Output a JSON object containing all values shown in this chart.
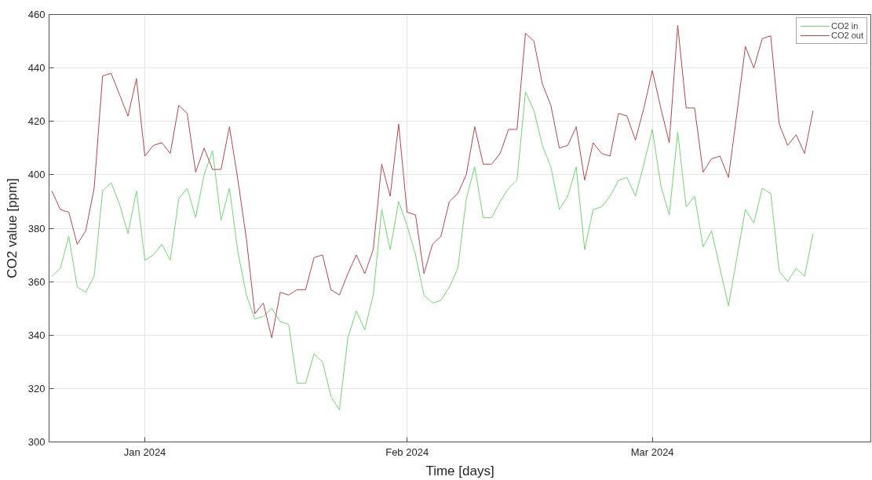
{
  "chart_data": {
    "type": "line",
    "xlabel": "Time [days]",
    "ylabel": "CO2 value [ppm]",
    "x": [
      "2023-12-21",
      "2023-12-22",
      "2023-12-23",
      "2023-12-24",
      "2023-12-25",
      "2023-12-26",
      "2023-12-27",
      "2023-12-28",
      "2023-12-29",
      "2023-12-30",
      "2023-12-31",
      "2024-01-01",
      "2024-01-02",
      "2024-01-03",
      "2024-01-04",
      "2024-01-05",
      "2024-01-06",
      "2024-01-07",
      "2024-01-08",
      "2024-01-09",
      "2024-01-10",
      "2024-01-11",
      "2024-01-12",
      "2024-01-13",
      "2024-01-14",
      "2024-01-15",
      "2024-01-16",
      "2024-01-17",
      "2024-01-18",
      "2024-01-19",
      "2024-01-20",
      "2024-01-21",
      "2024-01-22",
      "2024-01-23",
      "2024-01-24",
      "2024-01-25",
      "2024-01-26",
      "2024-01-27",
      "2024-01-28",
      "2024-01-29",
      "2024-01-30",
      "2024-01-31",
      "2024-02-01",
      "2024-02-02",
      "2024-02-03",
      "2024-02-04",
      "2024-02-05",
      "2024-02-06",
      "2024-02-07",
      "2024-02-08",
      "2024-02-09",
      "2024-02-10",
      "2024-02-11",
      "2024-02-12",
      "2024-02-13",
      "2024-02-14",
      "2024-02-15",
      "2024-02-16",
      "2024-02-17",
      "2024-02-18",
      "2024-02-19",
      "2024-02-20",
      "2024-02-21",
      "2024-02-22",
      "2024-02-23",
      "2024-02-24",
      "2024-02-25",
      "2024-02-26",
      "2024-02-27",
      "2024-02-28",
      "2024-02-29",
      "2024-03-01",
      "2024-03-02",
      "2024-03-03",
      "2024-03-04",
      "2024-03-05",
      "2024-03-06",
      "2024-03-07",
      "2024-03-08",
      "2024-03-09",
      "2024-03-10",
      "2024-03-11",
      "2024-03-12",
      "2024-03-13",
      "2024-03-14",
      "2024-03-15",
      "2024-03-16",
      "2024-03-17",
      "2024-03-18",
      "2024-03-19",
      "2024-03-20"
    ],
    "series": [
      {
        "name": "CO2 in",
        "color": "#6fd66f",
        "values": [
          362,
          365,
          377,
          358,
          356,
          362,
          394,
          397,
          389,
          378,
          394,
          368,
          370,
          374,
          368,
          391,
          395,
          384,
          400,
          409,
          383,
          395,
          371,
          355,
          346,
          347,
          350,
          345,
          344,
          322,
          322,
          333,
          330,
          317,
          312,
          339,
          349,
          342,
          355,
          387,
          372,
          390,
          381,
          370,
          355,
          352,
          353,
          358,
          365,
          391,
          403,
          384,
          384,
          390,
          395,
          398,
          431,
          424,
          411,
          403,
          387,
          392,
          403,
          372,
          387,
          388,
          392,
          398,
          399,
          392,
          404,
          417,
          396,
          385,
          416,
          388,
          392,
          373,
          379,
          365,
          351,
          369,
          387,
          382,
          395,
          393,
          364,
          360,
          365,
          362,
          378
        ]
      },
      {
        "name": "CO2 out",
        "color": "#b5464b",
        "values": [
          394,
          387,
          386,
          374,
          379,
          395,
          437,
          438,
          430,
          422,
          436,
          407,
          411,
          412,
          408,
          426,
          423,
          401,
          410,
          402,
          402,
          418,
          398,
          376,
          348,
          352,
          339,
          356,
          355,
          357,
          357,
          369,
          370,
          357,
          355,
          363,
          370,
          363,
          372,
          404,
          392,
          419,
          386,
          385,
          363,
          374,
          377,
          390,
          393,
          400,
          418,
          404,
          404,
          408,
          417,
          417,
          453,
          450,
          434,
          426,
          410,
          411,
          418,
          398,
          412,
          408,
          407,
          423,
          422,
          413,
          425,
          439,
          425,
          412,
          456,
          425,
          425,
          401,
          406,
          407,
          399,
          423,
          448,
          440,
          451,
          452,
          419,
          411,
          415,
          408,
          424
        ]
      }
    ],
    "xlim": [
      "2023-12-20T16:00",
      "2024-03-26T20:00"
    ],
    "xticks": [
      {
        "value": "2024-01-01",
        "label": "Jan 2024"
      },
      {
        "value": "2024-02-01",
        "label": "Feb 2024"
      },
      {
        "value": "2024-03-01",
        "label": "Mar 2024"
      }
    ],
    "ylim": [
      300,
      460
    ],
    "yticks": [
      300,
      320,
      340,
      360,
      380,
      400,
      420,
      440,
      460
    ],
    "grid": true,
    "legend": "top right",
    "line_style": "solid",
    "marker": "none"
  }
}
